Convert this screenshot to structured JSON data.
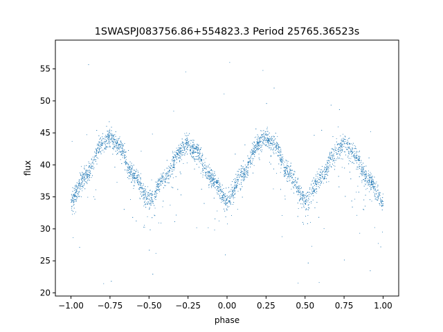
{
  "chart_data": {
    "type": "scatter",
    "title": "1SWASPJ083756.86+554823.3 Period 25765.36523s",
    "xlabel": "phase",
    "ylabel": "flux",
    "xlim": [
      -1.1,
      1.1
    ],
    "ylim": [
      19.5,
      59.5
    ],
    "xticks": [
      -1.0,
      -0.75,
      -0.5,
      -0.25,
      0.0,
      0.25,
      0.5,
      0.75,
      1.0
    ],
    "xtick_labels": [
      "−1.00",
      "−0.75",
      "−0.50",
      "−0.25",
      "0.00",
      "0.25",
      "0.50",
      "0.75",
      "1.00"
    ],
    "yticks": [
      20,
      25,
      30,
      35,
      40,
      45,
      50,
      55
    ],
    "ytick_labels": [
      "20",
      "25",
      "30",
      "35",
      "40",
      "45",
      "50",
      "55"
    ],
    "grid": false,
    "marker_color": "#1f77b4",
    "series": [
      {
        "name": "",
        "description_points": {
          "x": [
            -1.0,
            -0.9,
            -0.8,
            -0.75,
            -0.7,
            -0.6,
            -0.5,
            -0.4,
            -0.3,
            -0.25,
            -0.2,
            -0.1,
            0.0,
            0.1,
            0.2,
            0.25,
            0.3,
            0.4,
            0.5,
            0.6,
            0.7,
            0.75,
            0.8,
            0.9,
            1.0
          ],
          "y": [
            34.5,
            38.5,
            43.2,
            44.3,
            43.2,
            38.5,
            34.5,
            38.0,
            42.0,
            43.3,
            42.0,
            38.0,
            34.5,
            38.5,
            43.2,
            44.3,
            43.2,
            38.5,
            34.5,
            38.0,
            42.0,
            43.3,
            42.0,
            38.0,
            34.5
          ]
        }
      }
    ]
  }
}
